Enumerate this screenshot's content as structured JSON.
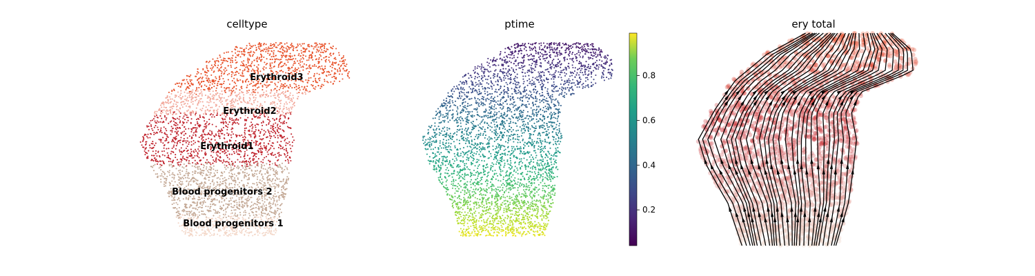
{
  "chart_data": [
    {
      "type": "scatter",
      "title": "celltype",
      "xlabel": "",
      "ylabel": "",
      "grid": false,
      "legend": "on data",
      "categories": [
        "Blood progenitors 1",
        "Blood progenitors 2",
        "Erythroid1",
        "Erythroid2",
        "Erythroid3"
      ],
      "colors": {
        "Blood progenitors 1": "#f3d7c8",
        "Blood progenitors 2": "#c4a996",
        "Erythroid1": "#c0242d",
        "Erythroid2": "#f2a99c",
        "Erythroid3": "#e8542c"
      }
    },
    {
      "type": "scatter",
      "title": "ptime",
      "xlabel": "",
      "ylabel": "",
      "grid": false,
      "colormap": "viridis",
      "colorbar": {
        "range": [
          0.04,
          0.99
        ],
        "ticks": [
          0.2,
          0.4,
          0.6,
          0.8
        ],
        "tick_labels": [
          "0.2",
          "0.4",
          "0.6",
          "0.8"
        ]
      }
    },
    {
      "type": "scatter",
      "title": "ery total",
      "xlabel": "",
      "ylabel": "",
      "grid": false,
      "overlay": "velocity streamlines",
      "colors": {
        "stream": "#000000"
      }
    }
  ]
}
